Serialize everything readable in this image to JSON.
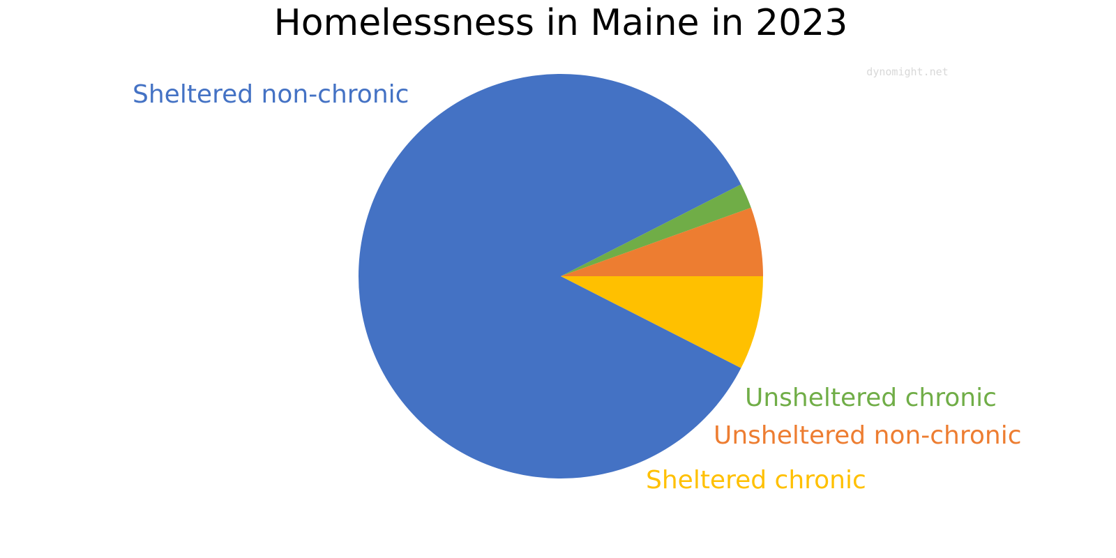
{
  "chart_data": {
    "type": "pie",
    "title": "Homelessness in Maine in 2023",
    "watermark": "dynomight.net",
    "slices": [
      {
        "label": "Sheltered non-chronic",
        "value": 85.0,
        "color": "#4472C4"
      },
      {
        "label": "Unsheltered chronic",
        "value": 2.0,
        "color": "#70AD47"
      },
      {
        "label": "Unsheltered non-chronic",
        "value": 5.5,
        "color": "#ED7D31"
      },
      {
        "label": "Sheltered chronic",
        "value": 7.5,
        "color": "#FFC000"
      }
    ],
    "legend": "none"
  }
}
